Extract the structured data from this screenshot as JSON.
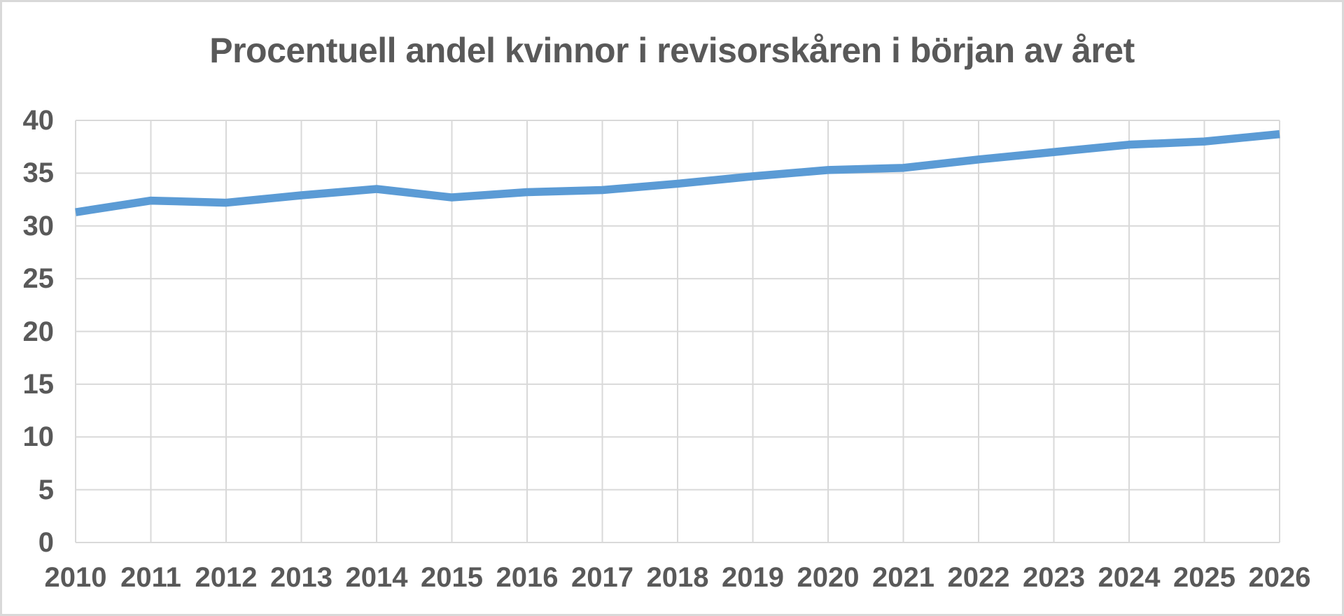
{
  "frame": {
    "background": "#FFFFFF",
    "border_color": "#D9D9D9"
  },
  "chart_data": {
    "type": "line",
    "title": "Procentuell andel kvinnor i revisorskåren i början av året",
    "categories": [
      "2010",
      "2011",
      "2012",
      "2013",
      "2014",
      "2015",
      "2016",
      "2017",
      "2018",
      "2019",
      "2020",
      "2021",
      "2022",
      "2023",
      "2024",
      "2025",
      "2026"
    ],
    "series": [
      {
        "values": [
          31.3,
          32.4,
          32.2,
          32.9,
          33.5,
          32.7,
          33.2,
          33.4,
          34.0,
          34.7,
          35.3,
          35.5,
          36.3,
          37.0,
          37.7,
          38.0,
          38.7
        ],
        "color": "#5B9BD5"
      }
    ],
    "xlabel": "",
    "ylabel": "",
    "ylim": [
      0,
      40
    ],
    "yticks": [
      0,
      5,
      10,
      15,
      20,
      25,
      30,
      35,
      40
    ],
    "ytick_labels": [
      "0",
      "5",
      "10",
      "15",
      "20",
      "25",
      "30",
      "35",
      "40"
    ],
    "grid": true,
    "gridline_color": "#D9D9D9",
    "text_color": "#595959",
    "legend_position": "none",
    "line_width": 11.5
  }
}
